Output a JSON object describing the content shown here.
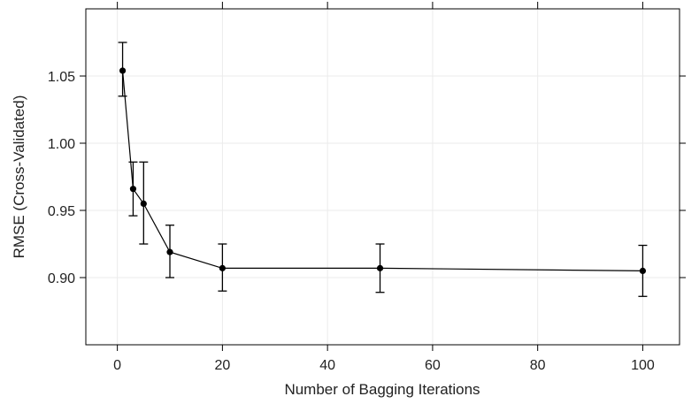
{
  "chart_data": {
    "type": "line",
    "title": "",
    "xlabel": "Number of Bagging Iterations",
    "ylabel": "RMSE (Cross-Validated)",
    "xlim": [
      -6,
      107
    ],
    "ylim": [
      0.85,
      1.1
    ],
    "xticks": [
      0,
      20,
      40,
      60,
      80,
      100
    ],
    "xtick_labels": [
      "0",
      "20",
      "40",
      "60",
      "80",
      "100"
    ],
    "yticks": [
      0.9,
      0.95,
      1.0,
      1.05
    ],
    "ytick_labels": [
      "0.90",
      "0.95",
      "1.00",
      "1.05"
    ],
    "grid": true,
    "series": [
      {
        "x": [
          1,
          3,
          5,
          10,
          20,
          50,
          100
        ],
        "y": [
          1.054,
          0.966,
          0.955,
          0.919,
          0.907,
          0.907,
          0.905
        ],
        "err_low": [
          1.035,
          0.946,
          0.925,
          0.9,
          0.89,
          0.889,
          0.886
        ],
        "err_high": [
          1.075,
          0.986,
          0.986,
          0.939,
          0.925,
          0.925,
          0.924
        ]
      }
    ],
    "colors": {
      "line": "#000000",
      "grid": "#ebebeb",
      "axis": "#000000"
    }
  }
}
